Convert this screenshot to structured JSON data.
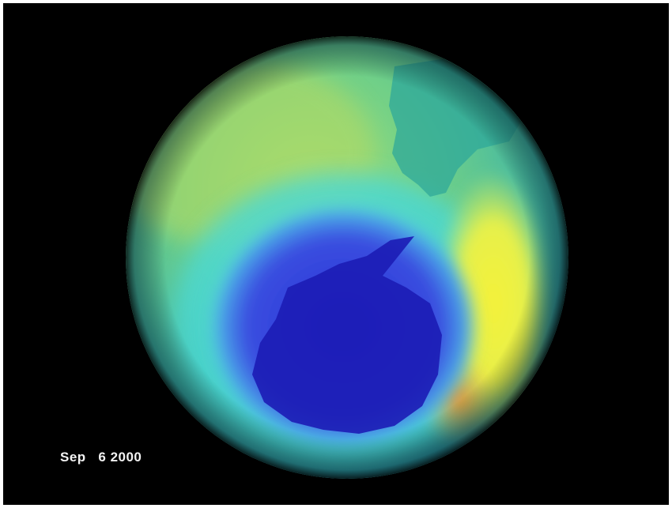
{
  "image": {
    "date_month": "Sep",
    "date_day": "6",
    "date_year": "2000"
  }
}
